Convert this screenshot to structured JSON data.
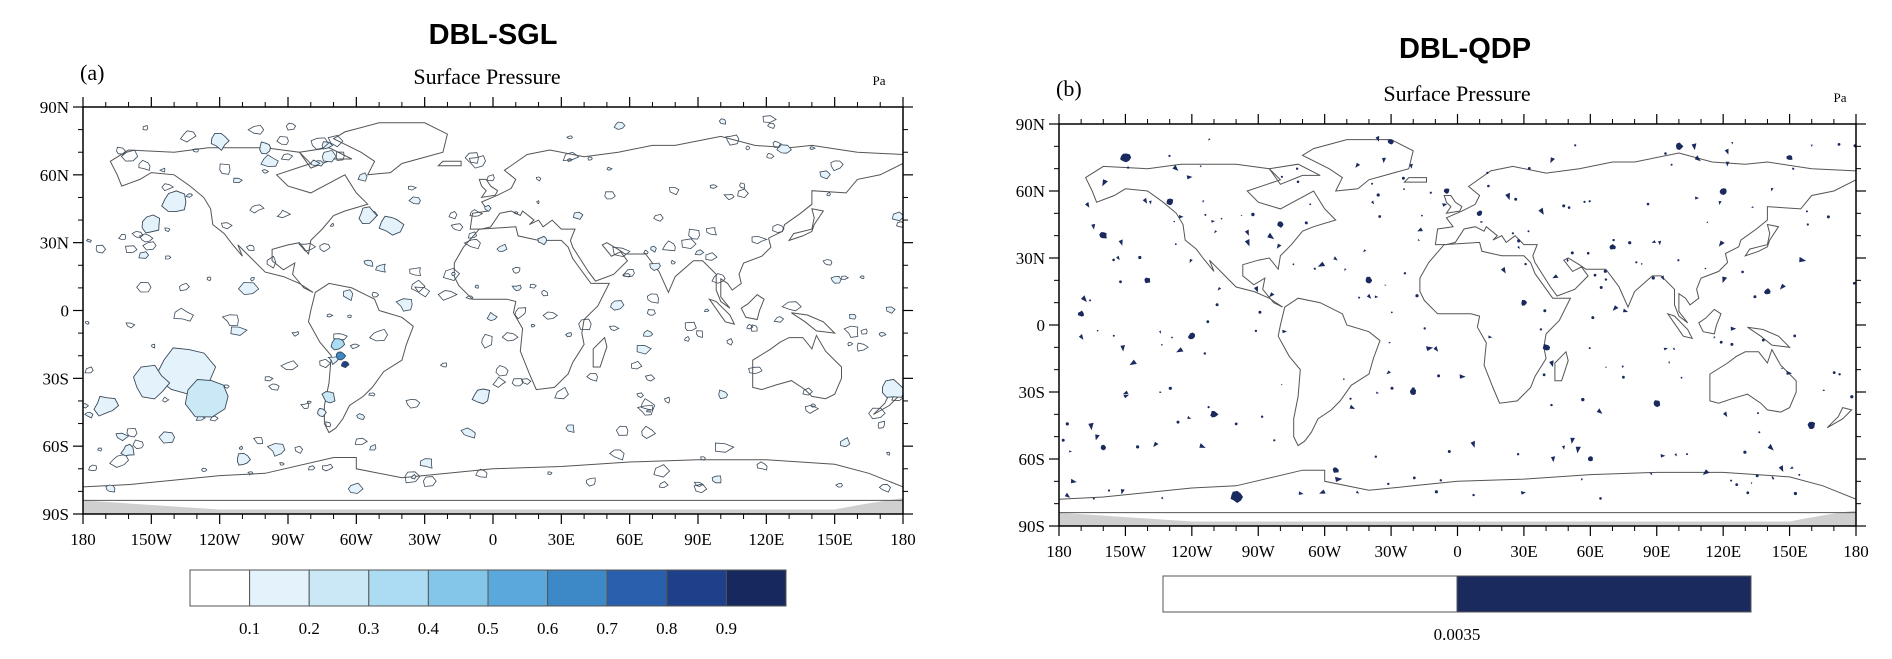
{
  "chart_data": [
    {
      "type": "heatmap",
      "title": "DBL-SGL",
      "panel_label": "(a)",
      "subtitle": "Surface Pressure",
      "units": "Pa",
      "x_ticks": [
        "180",
        "150W",
        "120W",
        "90W",
        "60W",
        "30W",
        "0",
        "30E",
        "60E",
        "90E",
        "120E",
        "150E",
        "180"
      ],
      "y_ticks": [
        "90N",
        "60N",
        "30N",
        "0",
        "30S",
        "60S",
        "90S"
      ],
      "xlim": [
        -180,
        180
      ],
      "ylim": [
        -90,
        90
      ],
      "colorbar": {
        "levels": [
          "0.1",
          "0.2",
          "0.3",
          "0.4",
          "0.5",
          "0.6",
          "0.7",
          "0.8",
          "0.9"
        ],
        "colors": [
          "#ffffff",
          "#e3f2fb",
          "#cbe8f6",
          "#abdcf3",
          "#84c6ea",
          "#5ba8dc",
          "#3d88c6",
          "#2a5fae",
          "#1e3f8a",
          "#17285f"
        ]
      },
      "regions": [
        {
          "lon": -135,
          "lat": -25,
          "value": 0.1,
          "r": 12
        },
        {
          "lon": -125,
          "lat": -38,
          "value": 0.2,
          "r": 10
        },
        {
          "lon": -150,
          "lat": -32,
          "value": 0.1,
          "r": 8
        },
        {
          "lon": -170,
          "lat": -42,
          "value": 0.1,
          "r": 5
        },
        {
          "lon": -140,
          "lat": 48,
          "value": 0.1,
          "r": 6
        },
        {
          "lon": -150,
          "lat": 38,
          "value": 0.1,
          "r": 4
        },
        {
          "lon": -45,
          "lat": 38,
          "value": 0.1,
          "r": 5
        },
        {
          "lon": -55,
          "lat": 42,
          "value": 0.1,
          "r": 4
        },
        {
          "lon": -68,
          "lat": -15,
          "value": 0.3,
          "r": 3
        },
        {
          "lon": -67,
          "lat": -20,
          "value": 0.6,
          "r": 2
        },
        {
          "lon": -65,
          "lat": -24,
          "value": 0.8,
          "r": 1.5
        },
        {
          "lon": -72,
          "lat": -38,
          "value": 0.2,
          "r": 3
        },
        {
          "lon": -75,
          "lat": -45,
          "value": 0.1,
          "r": 2
        },
        {
          "lon": 22,
          "lat": 31,
          "value": 0.1,
          "r": 2
        },
        {
          "lon": -120,
          "lat": 75,
          "value": 0.1,
          "r": 4
        },
        {
          "lon": -100,
          "lat": 72,
          "value": 0.1,
          "r": 3
        },
        {
          "lon": 175,
          "lat": -35,
          "value": 0.1,
          "r": 5
        },
        {
          "lon": -5,
          "lat": -38,
          "value": 0.1,
          "r": 4
        },
        {
          "lon": -160,
          "lat": -62,
          "value": 0.1,
          "r": 3
        },
        {
          "lon": -110,
          "lat": -66,
          "value": 0.1,
          "r": 3
        }
      ]
    },
    {
      "type": "heatmap",
      "title": "DBL-QDP",
      "panel_label": "(b)",
      "subtitle": "Surface Pressure",
      "units": "Pa",
      "x_ticks": [
        "180",
        "150W",
        "120W",
        "90W",
        "60W",
        "30W",
        "0",
        "30E",
        "60E",
        "90E",
        "120E",
        "150E",
        "180"
      ],
      "y_ticks": [
        "90N",
        "60N",
        "30N",
        "0",
        "30S",
        "60S",
        "90S"
      ],
      "xlim": [
        -180,
        180
      ],
      "ylim": [
        -90,
        90
      ],
      "colorbar": {
        "levels": [
          "0.0035"
        ],
        "colors": [
          "#ffffff",
          "#1a2a5e"
        ]
      },
      "regions": [
        {
          "lon": -150,
          "lat": 75,
          "value": 0.0035,
          "r": 2
        },
        {
          "lon": -130,
          "lat": 55,
          "value": 0.0035,
          "r": 1.5
        },
        {
          "lon": -160,
          "lat": 40,
          "value": 0.0035,
          "r": 1.5
        },
        {
          "lon": -140,
          "lat": 20,
          "value": 0.0035,
          "r": 1.2
        },
        {
          "lon": -120,
          "lat": -5,
          "value": 0.0035,
          "r": 1.5
        },
        {
          "lon": -110,
          "lat": -40,
          "value": 0.0035,
          "r": 1.5
        },
        {
          "lon": -160,
          "lat": -55,
          "value": 0.0035,
          "r": 1.2
        },
        {
          "lon": -80,
          "lat": 45,
          "value": 0.0035,
          "r": 1.2
        },
        {
          "lon": -40,
          "lat": 20,
          "value": 0.0035,
          "r": 1.5
        },
        {
          "lon": -20,
          "lat": -30,
          "value": 0.0035,
          "r": 1.2
        },
        {
          "lon": 10,
          "lat": 50,
          "value": 0.0035,
          "r": 1.2
        },
        {
          "lon": 40,
          "lat": -10,
          "value": 0.0035,
          "r": 1.5
        },
        {
          "lon": 70,
          "lat": 35,
          "value": 0.0035,
          "r": 1.2
        },
        {
          "lon": 90,
          "lat": -35,
          "value": 0.0035,
          "r": 1.5
        },
        {
          "lon": 120,
          "lat": 60,
          "value": 0.0035,
          "r": 1.5
        },
        {
          "lon": 140,
          "lat": 15,
          "value": 0.0035,
          "r": 1.2
        },
        {
          "lon": 160,
          "lat": -45,
          "value": 0.0035,
          "r": 1.5
        },
        {
          "lon": -100,
          "lat": -77,
          "value": 0.0035,
          "r": 2.5
        },
        {
          "lon": -55,
          "lat": -65,
          "value": 0.0035,
          "r": 1.2
        },
        {
          "lon": 60,
          "lat": -60,
          "value": 0.0035,
          "r": 1.2
        },
        {
          "lon": 100,
          "lat": 80,
          "value": 0.0035,
          "r": 1.5
        },
        {
          "lon": -30,
          "lat": 82,
          "value": 0.0035,
          "r": 1.2
        },
        {
          "lon": 150,
          "lat": 75,
          "value": 0.0035,
          "r": 1.2
        },
        {
          "lon": -170,
          "lat": 5,
          "value": 0.0035,
          "r": 1.2
        },
        {
          "lon": 30,
          "lat": 10,
          "value": 0.0035,
          "r": 1.2
        },
        {
          "lon": -5,
          "lat": 60,
          "value": 0.0035,
          "r": 1.2
        }
      ]
    }
  ]
}
